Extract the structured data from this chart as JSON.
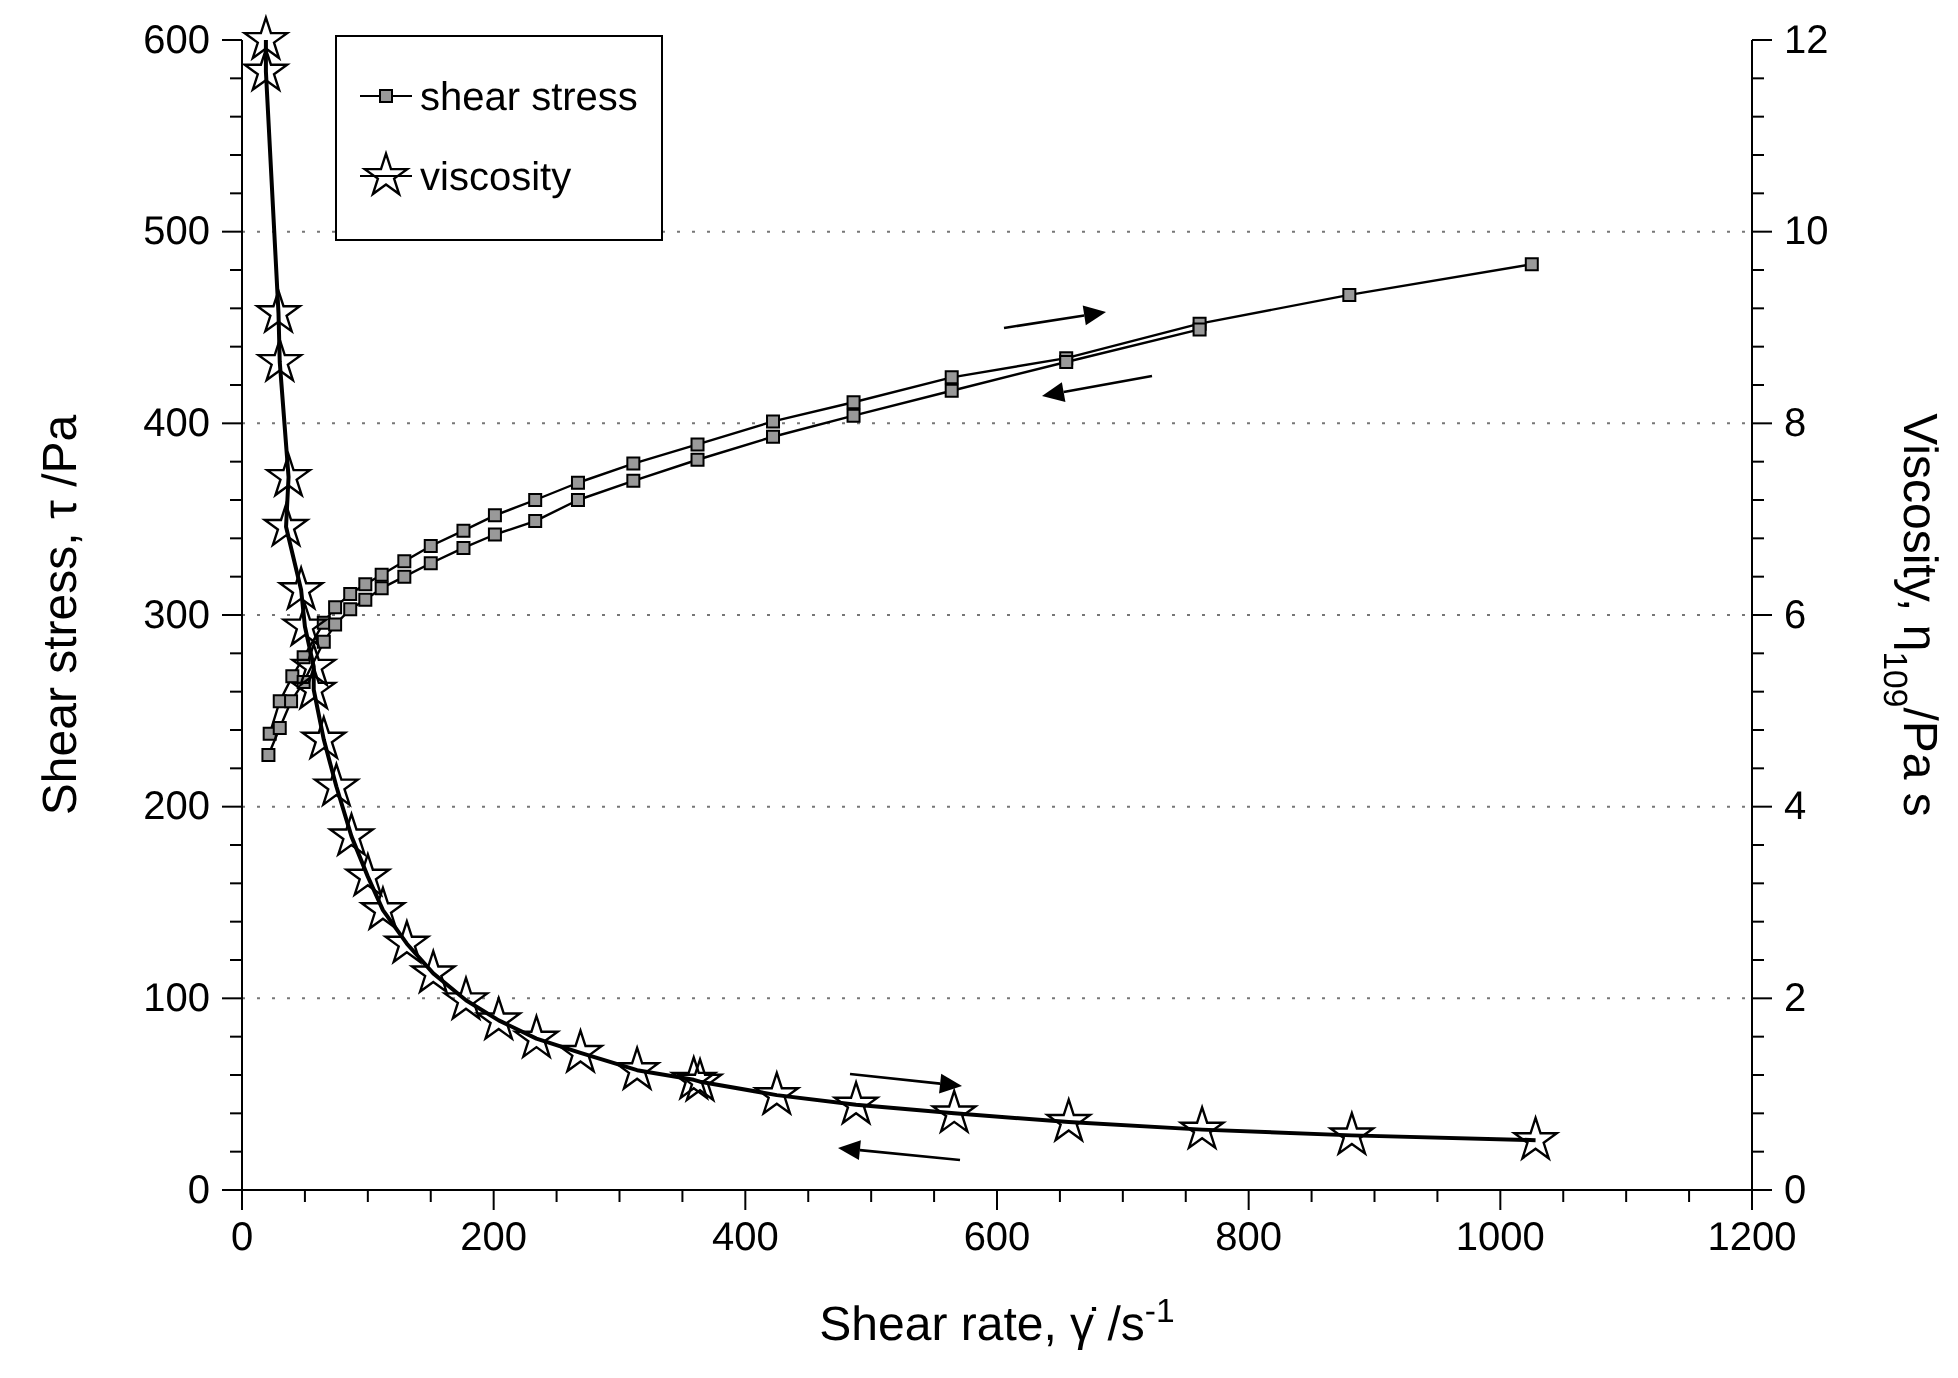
{
  "chart_data": {
    "type": "line",
    "xlabel": "Shear rate, γ̇ /s$^{-1}$",
    "ylabel": "Shear stress, τ /Pa",
    "y2label": "Viscosity, η$_{109}$/Pa s",
    "xlim": [
      0,
      1200
    ],
    "ylim": [
      0,
      600
    ],
    "y2lim": [
      0,
      12
    ],
    "xticks": [
      0,
      {
        "value": 50,
        "label": null
      },
      200,
      {
        "value": 100,
        "label": null
      },
      {
        "value": 150,
        "label": null
      },
      {
        "value": 250,
        "label": null
      },
      {
        "value": 300,
        "label": null
      },
      {
        "value": 350,
        "label": null
      },
      400,
      {
        "value": 450,
        "label": null
      },
      {
        "value": 500,
        "label": null
      },
      {
        "value": 550,
        "label": null
      },
      600,
      {
        "value": 650,
        "label": null
      },
      {
        "value": 700,
        "label": null
      },
      {
        "value": 750,
        "label": null
      },
      800,
      {
        "value": 850,
        "label": null
      },
      {
        "value": 900,
        "label": null
      },
      {
        "value": 950,
        "label": null
      },
      1000,
      {
        "value": 1050,
        "label": null
      },
      {
        "value": 1100,
        "label": null
      },
      {
        "value": 1150,
        "label": null
      },
      1200
    ],
    "yticks": [
      0,
      {
        "value": 20,
        "label": null
      },
      {
        "value": 40,
        "label": null
      },
      {
        "value": 60,
        "label": null
      },
      {
        "value": 80,
        "label": null
      },
      100,
      {
        "value": 120,
        "label": null
      },
      {
        "value": 140,
        "label": null
      },
      {
        "value": 160,
        "label": null
      },
      {
        "value": 180,
        "label": null
      },
      200,
      {
        "value": 220,
        "label": null
      },
      {
        "value": 240,
        "label": null
      },
      {
        "value": 260,
        "label": null
      },
      {
        "value": 280,
        "label": null
      },
      300,
      {
        "value": 320,
        "label": null
      },
      {
        "value": 340,
        "label": null
      },
      {
        "value": 360,
        "label": null
      },
      {
        "value": 380,
        "label": null
      },
      400,
      {
        "value": 420,
        "label": null
      },
      {
        "value": 440,
        "label": null
      },
      {
        "value": 460,
        "label": null
      },
      {
        "value": 480,
        "label": null
      },
      500,
      {
        "value": 520,
        "label": null
      },
      {
        "value": 540,
        "label": null
      },
      {
        "value": 560,
        "label": null
      },
      {
        "value": 580,
        "label": null
      },
      600
    ],
    "y2ticks": [
      0,
      {
        "value": 0.4,
        "label": null
      },
      {
        "value": 0.8,
        "label": null
      },
      {
        "value": 1.2,
        "label": null
      },
      {
        "value": 1.6,
        "label": null
      },
      2,
      {
        "value": 2.4,
        "label": null
      },
      {
        "value": 2.8,
        "label": null
      },
      {
        "value": 3.2,
        "label": null
      },
      {
        "value": 3.6,
        "label": null
      },
      4,
      {
        "value": 4.4,
        "label": null
      },
      {
        "value": 4.8,
        "label": null
      },
      {
        "value": 5.2,
        "label": null
      },
      {
        "value": 5.6,
        "label": null
      },
      6,
      {
        "value": 6.4,
        "label": null
      },
      {
        "value": 6.8,
        "label": null
      },
      {
        "value": 7.2,
        "label": null
      },
      {
        "value": 7.6,
        "label": null
      },
      8,
      {
        "value": 8.4,
        "label": null
      },
      {
        "value": 8.8,
        "label": null
      },
      {
        "value": 9.2,
        "label": null
      },
      {
        "value": 9.6,
        "label": null
      },
      10,
      {
        "value": 10.4,
        "label": null
      },
      {
        "value": 10.8,
        "label": null
      },
      {
        "value": 11.2,
        "label": null
      },
      {
        "value": 11.6,
        "label": null
      },
      12
    ],
    "grid": "y",
    "legend": "top left",
    "series": [
      {
        "name": "shear stress",
        "color": "#000000",
        "marker": "square",
        "x": [
          22,
          30,
          40,
          49,
          65,
          74,
          86,
          98,
          111,
          129,
          150,
          176,
          201,
          233,
          267,
          311,
          362,
          422,
          486,
          564,
          655,
          761,
          880,
          1025
        ],
        "values": [
          238,
          255,
          268,
          278,
          296,
          304,
          311,
          316,
          321,
          328,
          336,
          344,
          352,
          360,
          369,
          379,
          389,
          401,
          411,
          424,
          434,
          452,
          467,
          483
        ]
      },
      {
        "color": "#000000",
        "marker": "square",
        "x": [
          21,
          30,
          39,
          49,
          65,
          74,
          86,
          98,
          111,
          129,
          150,
          176,
          201,
          233,
          267,
          311,
          362,
          422,
          486,
          564,
          655,
          761
        ],
        "values": [
          227,
          241,
          255,
          265,
          286,
          295,
          303,
          308,
          314,
          320,
          327,
          335,
          342,
          349,
          360,
          370,
          381,
          393,
          404,
          417,
          432,
          449
        ]
      },
      {
        "name": "viscosity",
        "color": "#000000",
        "marker": "star",
        "axis": "y2",
        "x": [
          19,
          19,
          29,
          30,
          37,
          35,
          47,
          50,
          57,
          57,
          65,
          75,
          87,
          100,
          112,
          131,
          152,
          178,
          204,
          234,
          269,
          314,
          359,
          364,
          425,
          488,
          566,
          657,
          763,
          882,
          1028
        ],
        "values": [
          12.0,
          11.67,
          9.15,
          8.64,
          7.44,
          6.92,
          6.26,
          5.88,
          5.46,
          5.22,
          4.7,
          4.21,
          3.69,
          3.27,
          2.92,
          2.57,
          2.26,
          1.98,
          1.77,
          1.58,
          1.43,
          1.25,
          1.15,
          1.13,
          0.99,
          0.89,
          0.8,
          0.71,
          0.63,
          0.57,
          0.52
        ]
      }
    ]
  }
}
